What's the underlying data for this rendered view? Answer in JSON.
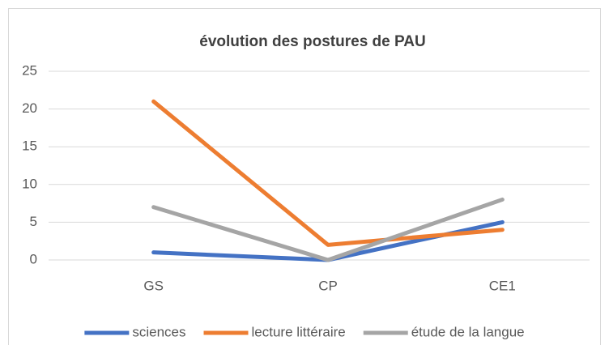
{
  "chart_data": {
    "type": "line",
    "title": "évolution des postures de PAU",
    "categories": [
      "GS",
      "CP",
      "CE1"
    ],
    "series": [
      {
        "name": "sciences",
        "color": "#4472c4",
        "values": [
          1,
          0,
          5
        ]
      },
      {
        "name": "lecture littéraire",
        "color": "#ed7d31",
        "values": [
          21,
          2,
          4
        ]
      },
      {
        "name": "étude de la langue",
        "color": "#a5a5a5",
        "values": [
          7,
          0,
          8
        ]
      }
    ],
    "ylim": [
      0,
      25
    ],
    "yticks": [
      0,
      5,
      10,
      15,
      20,
      25
    ],
    "grid": true,
    "legend": "bottom"
  }
}
